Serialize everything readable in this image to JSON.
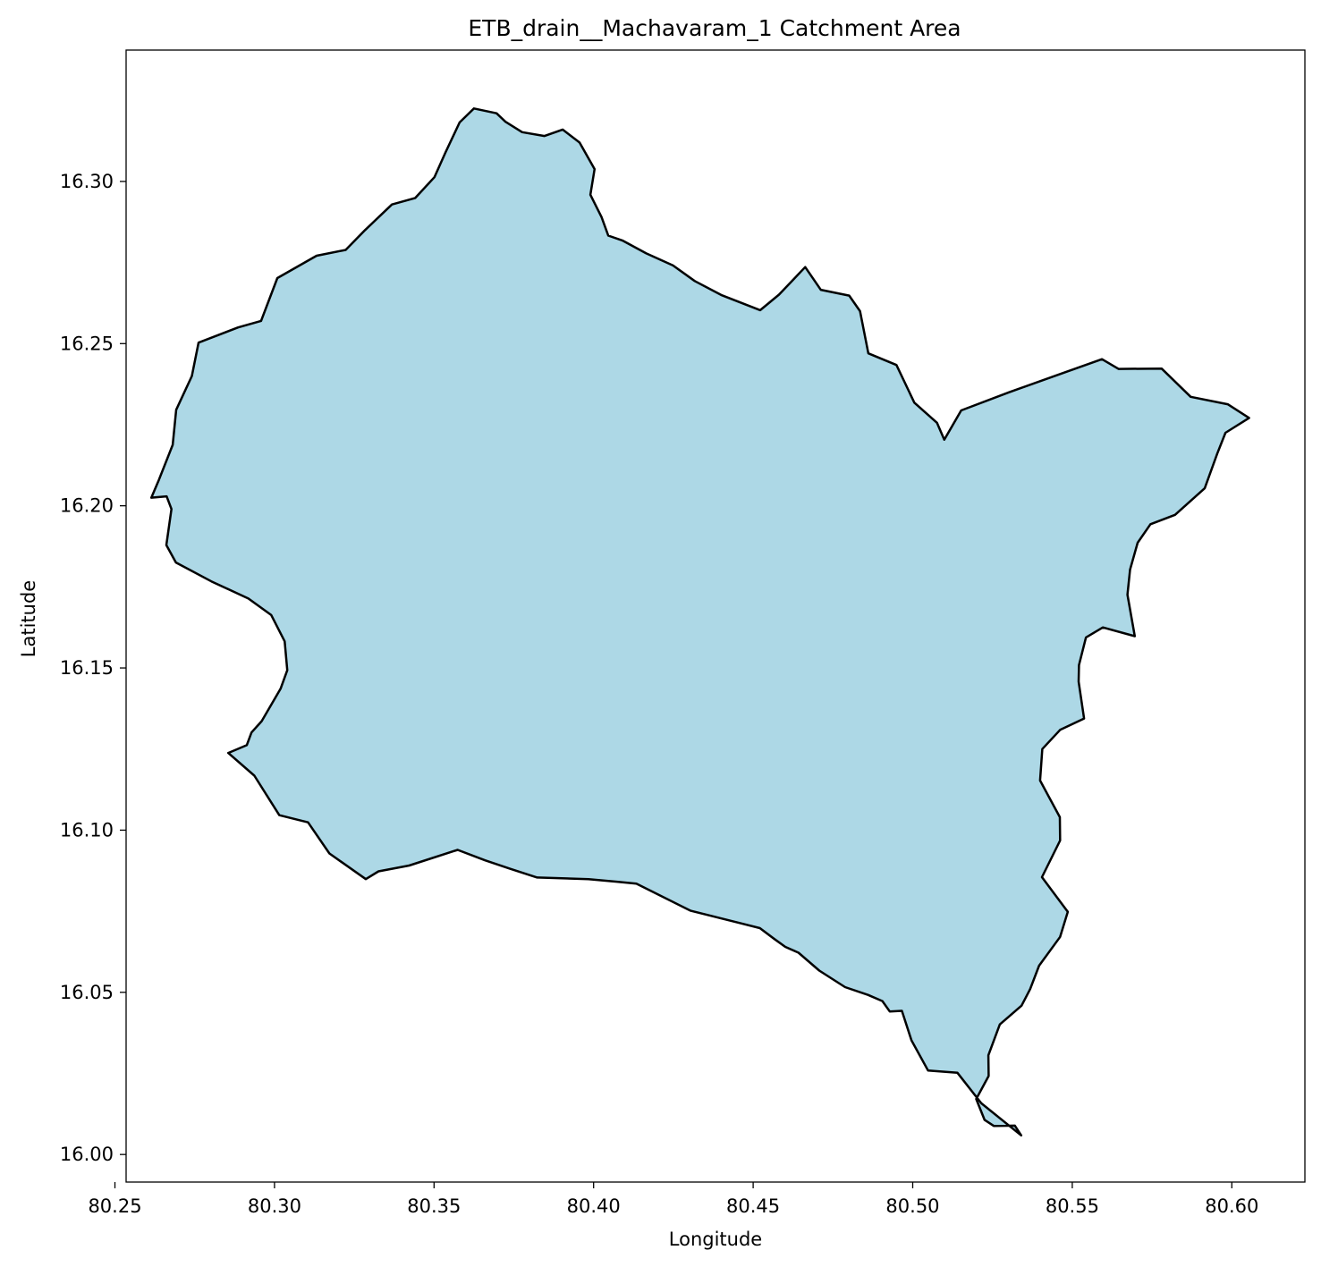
{
  "chart_data": {
    "type": "map",
    "title": "ETB_drain__Machavaram_1 Catchment Area",
    "xlabel": "Longitude",
    "ylabel": "Latitude",
    "xlim": [
      80.2535,
      80.6229
    ],
    "ylim": [
      15.9915,
      16.3405
    ],
    "xticks": [
      80.25,
      80.3,
      80.35,
      80.4,
      80.45,
      80.5,
      80.55,
      80.6
    ],
    "xtick_labels": [
      "80.25",
      "80.30",
      "80.35",
      "80.40",
      "80.45",
      "80.50",
      "80.55",
      "80.60"
    ],
    "yticks": [
      16.0,
      16.05,
      16.1,
      16.15,
      16.2,
      16.25,
      16.3
    ],
    "ytick_labels": [
      "16.00",
      "16.05",
      "16.10",
      "16.15",
      "16.20",
      "16.25",
      "16.30"
    ],
    "grid": false,
    "fill_color": "#add8e6",
    "edge_color": "#000000",
    "boundary": [
      [
        80.3625,
        16.3225
      ],
      [
        80.3696,
        16.321
      ],
      [
        80.3724,
        16.3184
      ],
      [
        80.3776,
        16.3152
      ],
      [
        80.3846,
        16.314
      ],
      [
        80.3903,
        16.316
      ],
      [
        80.3956,
        16.312
      ],
      [
        80.4003,
        16.3038
      ],
      [
        80.399,
        16.2959
      ],
      [
        80.4025,
        16.289
      ],
      [
        80.4046,
        16.2833
      ],
      [
        80.409,
        16.2818
      ],
      [
        80.4165,
        16.2778
      ],
      [
        80.4249,
        16.2741
      ],
      [
        80.4317,
        16.2693
      ],
      [
        80.44,
        16.265
      ],
      [
        80.4522,
        16.2603
      ],
      [
        80.4581,
        16.2651
      ],
      [
        80.4663,
        16.2736
      ],
      [
        80.4712,
        16.2666
      ],
      [
        80.4801,
        16.2648
      ],
      [
        80.4835,
        16.26
      ],
      [
        80.4861,
        16.247
      ],
      [
        80.4949,
        16.2434
      ],
      [
        80.5005,
        16.2318
      ],
      [
        80.5076,
        16.2256
      ],
      [
        80.5099,
        16.2204
      ],
      [
        80.5152,
        16.2294
      ],
      [
        80.5302,
        16.235
      ],
      [
        80.5461,
        16.2406
      ],
      [
        80.5593,
        16.2452
      ],
      [
        80.5645,
        16.2422
      ],
      [
        80.578,
        16.2423
      ],
      [
        80.5871,
        16.2336
      ],
      [
        80.5987,
        16.2313
      ],
      [
        80.6054,
        16.2271
      ],
      [
        80.598,
        16.2225
      ],
      [
        80.5954,
        16.216
      ],
      [
        80.5915,
        16.2054
      ],
      [
        80.5822,
        16.1972
      ],
      [
        80.5745,
        16.1943
      ],
      [
        80.5705,
        16.1886
      ],
      [
        80.5681,
        16.1803
      ],
      [
        80.5673,
        16.1726
      ],
      [
        80.5696,
        16.1598
      ],
      [
        80.5596,
        16.1625
      ],
      [
        80.5543,
        16.1594
      ],
      [
        80.5521,
        16.1509
      ],
      [
        80.552,
        16.1458
      ],
      [
        80.5537,
        16.1344
      ],
      [
        80.5462,
        16.1309
      ],
      [
        80.5406,
        16.125
      ],
      [
        80.5399,
        16.1153
      ],
      [
        80.5461,
        16.104
      ],
      [
        80.5462,
        16.0968
      ],
      [
        80.5405,
        16.0855
      ],
      [
        80.5486,
        16.0748
      ],
      [
        80.5462,
        16.0671
      ],
      [
        80.5396,
        16.0582
      ],
      [
        80.5368,
        16.051
      ],
      [
        80.5341,
        16.0459
      ],
      [
        80.5273,
        16.0401
      ],
      [
        80.5237,
        16.0306
      ],
      [
        80.5238,
        16.0242
      ],
      [
        80.5199,
        16.0171
      ],
      [
        80.5225,
        16.0107
      ],
      [
        80.5254,
        16.0088
      ],
      [
        80.532,
        16.0089
      ],
      [
        80.534,
        16.0059
      ],
      [
        80.5215,
        16.0158
      ],
      [
        80.514,
        16.0252
      ],
      [
        80.5048,
        16.0259
      ],
      [
        80.4996,
        16.0352
      ],
      [
        80.4966,
        16.0443
      ],
      [
        80.4928,
        16.0441
      ],
      [
        80.4905,
        16.0473
      ],
      [
        80.486,
        16.0492
      ],
      [
        80.4788,
        16.0516
      ],
      [
        80.4707,
        16.0567
      ],
      [
        80.4642,
        16.0622
      ],
      [
        80.4601,
        16.064
      ],
      [
        80.4567,
        16.0664
      ],
      [
        80.4521,
        16.0698
      ],
      [
        80.4465,
        16.0712
      ],
      [
        80.4303,
        16.0752
      ],
      [
        80.4134,
        16.0835
      ],
      [
        80.4073,
        16.0841
      ],
      [
        80.3984,
        16.0849
      ],
      [
        80.3823,
        16.0854
      ],
      [
        80.3738,
        16.0881
      ],
      [
        80.366,
        16.0907
      ],
      [
        80.3574,
        16.0939
      ],
      [
        80.3422,
        16.0891
      ],
      [
        80.3326,
        16.0873
      ],
      [
        80.3286,
        16.0849
      ],
      [
        80.3172,
        16.0928
      ],
      [
        80.3105,
        16.1024
      ],
      [
        80.3015,
        16.1046
      ],
      [
        80.2937,
        16.1168
      ],
      [
        80.2855,
        16.1238
      ],
      [
        80.2913,
        16.1262
      ],
      [
        80.2928,
        16.1301
      ],
      [
        80.296,
        16.1336
      ],
      [
        80.3019,
        16.1436
      ],
      [
        80.304,
        16.1493
      ],
      [
        80.3032,
        16.1582
      ],
      [
        80.299,
        16.1663
      ],
      [
        80.2918,
        16.1714
      ],
      [
        80.2802,
        16.1767
      ],
      [
        80.2691,
        16.1825
      ],
      [
        80.2661,
        16.1879
      ],
      [
        80.2677,
        16.199
      ],
      [
        80.2662,
        16.2029
      ],
      [
        80.2614,
        16.2025
      ],
      [
        80.2638,
        16.208
      ],
      [
        80.2681,
        16.2188
      ],
      [
        80.2692,
        16.2296
      ],
      [
        80.2741,
        16.24
      ],
      [
        80.2762,
        16.2503
      ],
      [
        80.2886,
        16.255
      ],
      [
        80.2958,
        16.257
      ],
      [
        80.3009,
        16.2702
      ],
      [
        80.3132,
        16.2771
      ],
      [
        80.3223,
        16.2789
      ],
      [
        80.3284,
        16.285
      ],
      [
        80.3368,
        16.2929
      ],
      [
        80.3441,
        16.2949
      ],
      [
        80.3501,
        16.3013
      ],
      [
        80.3536,
        16.309
      ],
      [
        80.358,
        16.3182
      ]
    ]
  }
}
